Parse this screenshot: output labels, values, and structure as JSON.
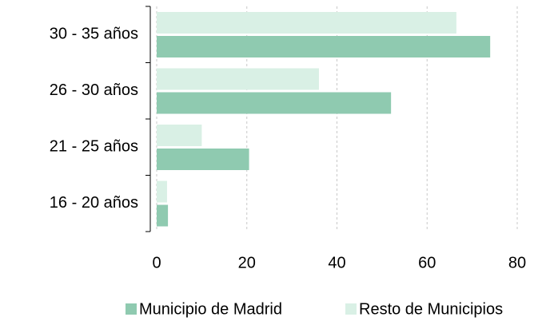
{
  "chart_data": {
    "type": "hbar",
    "categories": [
      "30 - 35 años",
      "26 - 30 años",
      "21 - 25 años",
      "16 - 20 años"
    ],
    "series": [
      {
        "name": "Municipio de Madrid",
        "color": "#8fcab0",
        "values": [
          74,
          52,
          20.5,
          2.5
        ]
      },
      {
        "name": "Resto de Municipios",
        "color": "#d9f0e5",
        "values": [
          66.5,
          36,
          10,
          2.3
        ]
      }
    ],
    "xlim": [
      0,
      80
    ],
    "xticks": [
      0,
      20,
      40,
      60,
      80
    ],
    "grid": true
  }
}
